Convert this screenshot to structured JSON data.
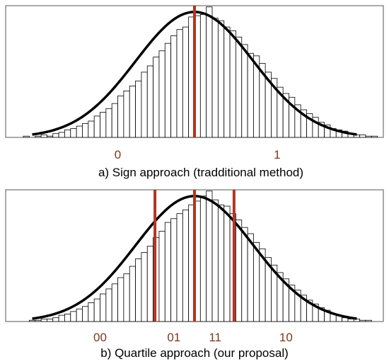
{
  "colors": {
    "bar_stroke": "#000000",
    "curve": "#000000",
    "threshold": "#b5331f",
    "region_label": "#7a3a1c",
    "frame": "#555555"
  },
  "chart_data": [
    {
      "type": "bar",
      "title": "",
      "caption": "a) Sign approach (tradditional method)",
      "xlim": [
        -3.2,
        3.2
      ],
      "ylim": [
        0,
        1.05
      ],
      "grid": false,
      "bin_centers": [
        -3.05,
        -2.95,
        -2.85,
        -2.75,
        -2.65,
        -2.55,
        -2.45,
        -2.35,
        -2.25,
        -2.15,
        -2.05,
        -1.95,
        -1.85,
        -1.75,
        -1.65,
        -1.55,
        -1.45,
        -1.35,
        -1.25,
        -1.15,
        -1.05,
        -0.95,
        -0.85,
        -0.75,
        -0.65,
        -0.55,
        -0.45,
        -0.35,
        -0.25,
        -0.15,
        -0.05,
        0.05,
        0.15,
        0.25,
        0.35,
        0.45,
        0.55,
        0.65,
        0.75,
        0.85,
        0.95,
        1.05,
        1.15,
        1.25,
        1.35,
        1.45,
        1.55,
        1.65,
        1.75,
        1.85,
        1.95,
        2.05,
        2.15,
        2.25,
        2.35,
        2.45,
        2.55,
        2.65,
        2.75,
        2.85,
        2.95,
        3.05
      ],
      "values": [
        0.0,
        0.0,
        0.01,
        0.0,
        0.01,
        0.02,
        0.01,
        0.03,
        0.04,
        0.06,
        0.07,
        0.09,
        0.11,
        0.13,
        0.17,
        0.2,
        0.23,
        0.27,
        0.33,
        0.37,
        0.41,
        0.45,
        0.52,
        0.57,
        0.64,
        0.69,
        0.75,
        0.81,
        0.86,
        0.88,
        0.96,
        0.97,
        0.98,
        1.04,
        0.95,
        0.93,
        0.88,
        0.85,
        0.8,
        0.74,
        0.67,
        0.65,
        0.59,
        0.52,
        0.47,
        0.4,
        0.35,
        0.32,
        0.26,
        0.22,
        0.19,
        0.16,
        0.12,
        0.1,
        0.07,
        0.06,
        0.05,
        0.03,
        0.02,
        0.02,
        0.01,
        0.01
      ],
      "curve": "normal density fit",
      "thresholds": [
        0.0
      ],
      "region_labels": [
        {
          "text": "0",
          "x": -1.3
        },
        {
          "text": "1",
          "x": 1.4
        }
      ]
    },
    {
      "type": "bar",
      "title": "",
      "caption": "b) Quartile approach (our proposal)",
      "xlim": [
        -3.2,
        3.2
      ],
      "ylim": [
        0,
        1.05
      ],
      "grid": false,
      "bin_centers": [
        -3.05,
        -2.95,
        -2.85,
        -2.75,
        -2.65,
        -2.55,
        -2.45,
        -2.35,
        -2.25,
        -2.15,
        -2.05,
        -1.95,
        -1.85,
        -1.75,
        -1.65,
        -1.55,
        -1.45,
        -1.35,
        -1.25,
        -1.15,
        -1.05,
        -0.95,
        -0.85,
        -0.75,
        -0.65,
        -0.55,
        -0.45,
        -0.35,
        -0.25,
        -0.15,
        -0.05,
        0.05,
        0.15,
        0.25,
        0.35,
        0.45,
        0.55,
        0.65,
        0.75,
        0.85,
        0.95,
        1.05,
        1.15,
        1.25,
        1.35,
        1.45,
        1.55,
        1.65,
        1.75,
        1.85,
        1.95,
        2.05,
        2.15,
        2.25,
        2.35,
        2.45,
        2.55,
        2.65,
        2.75,
        2.85,
        2.95,
        3.05
      ],
      "values": [
        0.0,
        0.0,
        0.0,
        0.01,
        0.01,
        0.02,
        0.02,
        0.03,
        0.05,
        0.06,
        0.08,
        0.1,
        0.12,
        0.15,
        0.18,
        0.22,
        0.26,
        0.3,
        0.35,
        0.38,
        0.44,
        0.5,
        0.55,
        0.6,
        0.67,
        0.72,
        0.79,
        0.82,
        0.86,
        0.89,
        0.93,
        0.96,
        1.0,
        1.04,
        0.97,
        0.93,
        0.92,
        0.86,
        0.81,
        0.75,
        0.7,
        0.63,
        0.58,
        0.51,
        0.45,
        0.39,
        0.34,
        0.29,
        0.25,
        0.21,
        0.17,
        0.14,
        0.11,
        0.09,
        0.06,
        0.05,
        0.03,
        0.02,
        0.02,
        0.01,
        0.01,
        0.0
      ],
      "curve": "normal density fit",
      "thresholds": [
        -0.67,
        0.0,
        0.67
      ],
      "region_labels": [
        {
          "text": "00",
          "x": -1.6
        },
        {
          "text": "01",
          "x": -0.35
        },
        {
          "text": "11",
          "x": 0.35
        },
        {
          "text": "10",
          "x": 1.55
        }
      ]
    }
  ]
}
